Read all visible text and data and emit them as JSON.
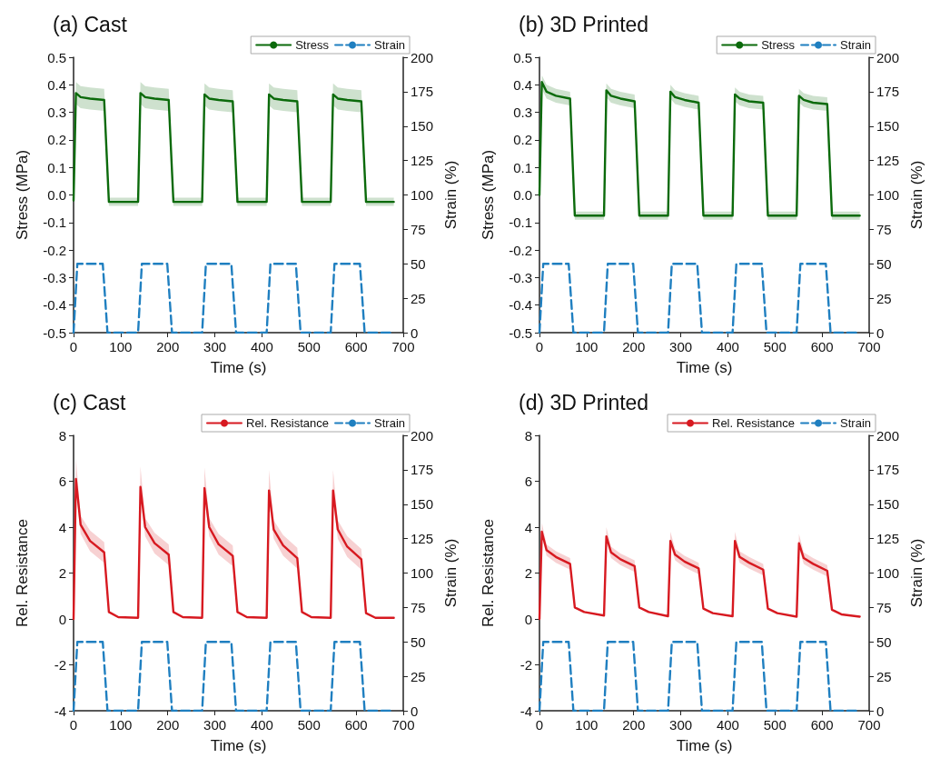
{
  "chart_data": [
    {
      "type": "line",
      "title": "(a) Cast",
      "xlabel": "Time (s)",
      "ylabel": "Stress (MPa)",
      "y2label": "Strain (%)",
      "legend": "top right",
      "xlim": [
        0,
        700
      ],
      "xticks": [
        0,
        100,
        200,
        300,
        400,
        500,
        600,
        700
      ],
      "ylim": [
        -0.5,
        0.5
      ],
      "yticks": [
        -0.5,
        -0.4,
        -0.3,
        -0.2,
        -0.1,
        {
          "value": 0,
          "label": "0.0"
        },
        0.1,
        0.2,
        0.3,
        0.4,
        0.5
      ],
      "y2lim": [
        0,
        200
      ],
      "y2ticks": [
        0,
        25,
        50,
        75,
        100,
        125,
        150,
        175,
        200
      ],
      "series": [
        {
          "name": "Stress",
          "color": "#0b6a0b",
          "x": [
            0,
            5,
            15,
            35,
            65,
            75,
            95,
            137,
            142,
            152,
            172,
            202,
            212,
            232,
            273,
            278,
            288,
            308,
            338,
            348,
            368,
            410,
            415,
            425,
            445,
            475,
            485,
            505,
            546,
            551,
            561,
            581,
            611,
            621,
            641,
            680
          ],
          "values": [
            -0.02,
            0.37,
            0.355,
            0.35,
            0.345,
            -0.025,
            -0.025,
            -0.025,
            0.37,
            0.355,
            0.35,
            0.345,
            -0.025,
            -0.025,
            -0.025,
            0.365,
            0.35,
            0.345,
            0.34,
            -0.025,
            -0.025,
            -0.025,
            0.365,
            0.35,
            0.345,
            0.34,
            -0.025,
            -0.025,
            -0.025,
            0.365,
            0.35,
            0.345,
            0.34,
            -0.025,
            -0.025,
            -0.025
          ],
          "lower": [
            -0.035,
            0.33,
            0.315,
            0.31,
            0.305,
            -0.04,
            -0.04,
            -0.04,
            0.33,
            0.315,
            0.31,
            0.305,
            -0.04,
            -0.04,
            -0.04,
            0.325,
            0.31,
            0.305,
            0.3,
            -0.04,
            -0.04,
            -0.04,
            0.325,
            0.31,
            0.305,
            0.3,
            -0.04,
            -0.04,
            -0.04,
            0.325,
            0.31,
            0.305,
            0.3,
            -0.04,
            -0.04,
            -0.04
          ],
          "upper": [
            -0.005,
            0.41,
            0.395,
            0.39,
            0.385,
            -0.01,
            -0.01,
            -0.01,
            0.41,
            0.395,
            0.39,
            0.385,
            -0.01,
            -0.01,
            -0.01,
            0.405,
            0.39,
            0.385,
            0.38,
            -0.01,
            -0.01,
            -0.01,
            0.405,
            0.39,
            0.385,
            0.38,
            -0.01,
            -0.01,
            -0.01,
            0.405,
            0.39,
            0.385,
            0.38,
            -0.01,
            -0.01,
            -0.01
          ]
        },
        {
          "name": "Strain",
          "color": "#1f7fc0",
          "axis": "y2",
          "line_style": "dashed",
          "x": [
            0,
            8,
            62,
            72,
            137,
            145,
            199,
            209,
            273,
            281,
            335,
            345,
            410,
            418,
            472,
            482,
            546,
            554,
            608,
            618,
            680
          ],
          "values": [
            0,
            50,
            50,
            0,
            0,
            50,
            50,
            0,
            0,
            50,
            50,
            0,
            0,
            50,
            50,
            0,
            0,
            50,
            50,
            0,
            0
          ]
        }
      ]
    },
    {
      "type": "line",
      "title": "(b) 3D Printed",
      "xlabel": "Time (s)",
      "ylabel": "Stress (MPa)",
      "y2label": "Strain (%)",
      "legend": "top right",
      "xlim": [
        0,
        700
      ],
      "xticks": [
        0,
        100,
        200,
        300,
        400,
        500,
        600,
        700
      ],
      "ylim": [
        -0.5,
        0.5
      ],
      "yticks": [
        -0.5,
        -0.4,
        -0.3,
        -0.2,
        -0.1,
        {
          "value": 0,
          "label": "0.0"
        },
        0.1,
        0.2,
        0.3,
        0.4,
        0.5
      ],
      "y2lim": [
        0,
        200
      ],
      "y2ticks": [
        0,
        25,
        50,
        75,
        100,
        125,
        150,
        175,
        200
      ],
      "series": [
        {
          "name": "Stress",
          "color": "#0b6a0b",
          "x": [
            0,
            5,
            15,
            35,
            65,
            75,
            95,
            137,
            142,
            152,
            172,
            202,
            212,
            232,
            273,
            278,
            288,
            308,
            338,
            348,
            368,
            410,
            415,
            425,
            445,
            475,
            485,
            505,
            546,
            551,
            561,
            581,
            611,
            621,
            641,
            680
          ],
          "values": [
            0,
            0.41,
            0.375,
            0.36,
            0.35,
            -0.075,
            -0.075,
            -0.075,
            0.38,
            0.36,
            0.35,
            0.34,
            -0.075,
            -0.075,
            -0.075,
            0.375,
            0.355,
            0.345,
            0.335,
            -0.075,
            -0.075,
            -0.075,
            0.365,
            0.35,
            0.34,
            0.335,
            -0.075,
            -0.075,
            -0.075,
            0.36,
            0.345,
            0.335,
            0.33,
            -0.075,
            -0.075,
            -0.075
          ],
          "lower": [
            -0.015,
            0.385,
            0.35,
            0.335,
            0.325,
            -0.09,
            -0.09,
            -0.09,
            0.355,
            0.335,
            0.325,
            0.315,
            -0.09,
            -0.09,
            -0.09,
            0.35,
            0.33,
            0.32,
            0.31,
            -0.09,
            -0.09,
            -0.09,
            0.34,
            0.325,
            0.315,
            0.31,
            -0.09,
            -0.09,
            -0.09,
            0.335,
            0.32,
            0.31,
            0.305,
            -0.09,
            -0.09,
            -0.09
          ],
          "upper": [
            0.015,
            0.435,
            0.4,
            0.385,
            0.375,
            -0.06,
            -0.06,
            -0.06,
            0.405,
            0.385,
            0.375,
            0.365,
            -0.06,
            -0.06,
            -0.06,
            0.4,
            0.38,
            0.37,
            0.36,
            -0.06,
            -0.06,
            -0.06,
            0.39,
            0.375,
            0.365,
            0.36,
            -0.06,
            -0.06,
            -0.06,
            0.385,
            0.37,
            0.36,
            0.355,
            -0.06,
            -0.06,
            -0.06
          ]
        },
        {
          "name": "Strain",
          "color": "#1f7fc0",
          "axis": "y2",
          "line_style": "dashed",
          "x": [
            0,
            8,
            62,
            72,
            137,
            145,
            199,
            209,
            273,
            281,
            335,
            345,
            410,
            418,
            472,
            482,
            546,
            554,
            608,
            618,
            680
          ],
          "values": [
            0,
            50,
            50,
            0,
            0,
            50,
            50,
            0,
            0,
            50,
            50,
            0,
            0,
            50,
            50,
            0,
            0,
            50,
            50,
            0,
            0
          ]
        }
      ]
    },
    {
      "type": "line",
      "title": "(c) Cast",
      "xlabel": "Time (s)",
      "ylabel": "Rel. Resistance",
      "y2label": "Strain (%)",
      "legend": "top right",
      "xlim": [
        0,
        700
      ],
      "xticks": [
        0,
        100,
        200,
        300,
        400,
        500,
        600,
        700
      ],
      "ylim": [
        -4,
        8
      ],
      "yticks": [
        -4,
        -2,
        0,
        2,
        4,
        6,
        8
      ],
      "y2lim": [
        0,
        200
      ],
      "y2ticks": [
        0,
        25,
        50,
        75,
        100,
        125,
        150,
        175,
        200
      ],
      "series": [
        {
          "name": "Rel. Resistance",
          "color": "#d71920",
          "x": [
            0,
            5,
            15,
            35,
            65,
            75,
            95,
            137,
            142,
            152,
            172,
            202,
            212,
            232,
            273,
            278,
            288,
            308,
            338,
            348,
            368,
            410,
            415,
            425,
            445,
            475,
            485,
            505,
            546,
            551,
            561,
            581,
            611,
            621,
            641,
            680
          ],
          "values": [
            0,
            6.1,
            4.1,
            3.4,
            2.9,
            0.3,
            0.08,
            0.05,
            5.75,
            4.0,
            3.3,
            2.8,
            0.3,
            0.08,
            0.05,
            5.7,
            4.0,
            3.25,
            2.75,
            0.3,
            0.08,
            0.05,
            5.6,
            3.9,
            3.2,
            2.65,
            0.3,
            0.08,
            0.05,
            5.6,
            3.9,
            3.15,
            2.6,
            0.25,
            0.05,
            0.05
          ],
          "lower": [
            0,
            5.7,
            3.7,
            2.95,
            2.45,
            0.3,
            0.08,
            0.05,
            5.35,
            3.6,
            2.85,
            2.35,
            0.3,
            0.08,
            0.05,
            5.3,
            3.6,
            2.8,
            2.3,
            0.3,
            0.08,
            0.05,
            5.2,
            3.5,
            2.75,
            2.2,
            0.3,
            0.08,
            0.05,
            5.2,
            3.5,
            2.7,
            2.15,
            0.25,
            0.05,
            0.05
          ],
          "upper": [
            0,
            7.0,
            4.5,
            3.85,
            3.35,
            0.3,
            0.08,
            0.05,
            6.65,
            4.4,
            3.75,
            3.25,
            0.3,
            0.08,
            0.05,
            6.6,
            4.4,
            3.7,
            3.2,
            0.3,
            0.08,
            0.05,
            6.5,
            4.3,
            3.65,
            3.1,
            0.3,
            0.08,
            0.05,
            6.5,
            4.3,
            3.6,
            3.05,
            0.25,
            0.05,
            0.05
          ]
        },
        {
          "name": "Strain",
          "color": "#1f7fc0",
          "axis": "y2",
          "line_style": "dashed",
          "x": [
            0,
            8,
            62,
            72,
            137,
            145,
            199,
            209,
            273,
            281,
            335,
            345,
            410,
            418,
            472,
            482,
            546,
            554,
            608,
            618,
            680
          ],
          "values": [
            0,
            50,
            50,
            0,
            0,
            50,
            50,
            0,
            0,
            50,
            50,
            0,
            0,
            50,
            50,
            0,
            0,
            50,
            50,
            0,
            0
          ]
        }
      ]
    },
    {
      "type": "line",
      "title": "(d) 3D Printed",
      "xlabel": "Time (s)",
      "ylabel": "Rel. Resistance",
      "y2label": "Strain (%)",
      "legend": "top right",
      "xlim": [
        0,
        700
      ],
      "xticks": [
        0,
        100,
        200,
        300,
        400,
        500,
        600,
        700
      ],
      "ylim": [
        -4,
        8
      ],
      "yticks": [
        -4,
        -2,
        0,
        2,
        4,
        6,
        8
      ],
      "y2lim": [
        0,
        200
      ],
      "y2ticks": [
        0,
        25,
        50,
        75,
        100,
        125,
        150,
        175,
        200
      ],
      "series": [
        {
          "name": "Rel. Resistance",
          "color": "#d71920",
          "x": [
            0,
            5,
            15,
            35,
            65,
            75,
            95,
            137,
            142,
            152,
            172,
            202,
            212,
            232,
            273,
            278,
            288,
            308,
            338,
            348,
            368,
            410,
            415,
            425,
            445,
            475,
            485,
            505,
            546,
            551,
            561,
            581,
            611,
            621,
            641,
            680
          ],
          "values": [
            0,
            3.8,
            3.0,
            2.7,
            2.4,
            0.5,
            0.3,
            0.15,
            3.6,
            2.9,
            2.6,
            2.3,
            0.5,
            0.3,
            0.12,
            3.4,
            2.8,
            2.5,
            2.2,
            0.45,
            0.25,
            0.12,
            3.4,
            2.7,
            2.45,
            2.15,
            0.45,
            0.25,
            0.1,
            3.3,
            2.65,
            2.4,
            2.1,
            0.4,
            0.2,
            0.1
          ],
          "lower": [
            0,
            3.6,
            2.75,
            2.45,
            2.15,
            0.5,
            0.3,
            0.15,
            3.4,
            2.65,
            2.35,
            2.05,
            0.5,
            0.3,
            0.12,
            3.2,
            2.55,
            2.25,
            1.95,
            0.45,
            0.25,
            0.12,
            3.2,
            2.45,
            2.2,
            1.9,
            0.45,
            0.25,
            0.1,
            3.1,
            2.4,
            2.15,
            1.85,
            0.4,
            0.2,
            0.1
          ],
          "upper": [
            0,
            4.2,
            3.25,
            2.95,
            2.65,
            0.5,
            0.3,
            0.15,
            4.0,
            3.15,
            2.85,
            2.55,
            0.5,
            0.3,
            0.12,
            3.8,
            3.05,
            2.75,
            2.45,
            0.45,
            0.25,
            0.12,
            3.8,
            2.95,
            2.7,
            2.4,
            0.45,
            0.25,
            0.1,
            3.7,
            2.9,
            2.65,
            2.35,
            0.4,
            0.2,
            0.1
          ]
        },
        {
          "name": "Strain",
          "color": "#1f7fc0",
          "axis": "y2",
          "line_style": "dashed",
          "x": [
            0,
            8,
            62,
            72,
            137,
            145,
            199,
            209,
            273,
            281,
            335,
            345,
            410,
            418,
            472,
            482,
            546,
            554,
            608,
            618,
            680
          ],
          "values": [
            0,
            50,
            50,
            0,
            0,
            50,
            50,
            0,
            0,
            50,
            50,
            0,
            0,
            50,
            50,
            0,
            0,
            50,
            50,
            0,
            0
          ]
        }
      ]
    }
  ]
}
